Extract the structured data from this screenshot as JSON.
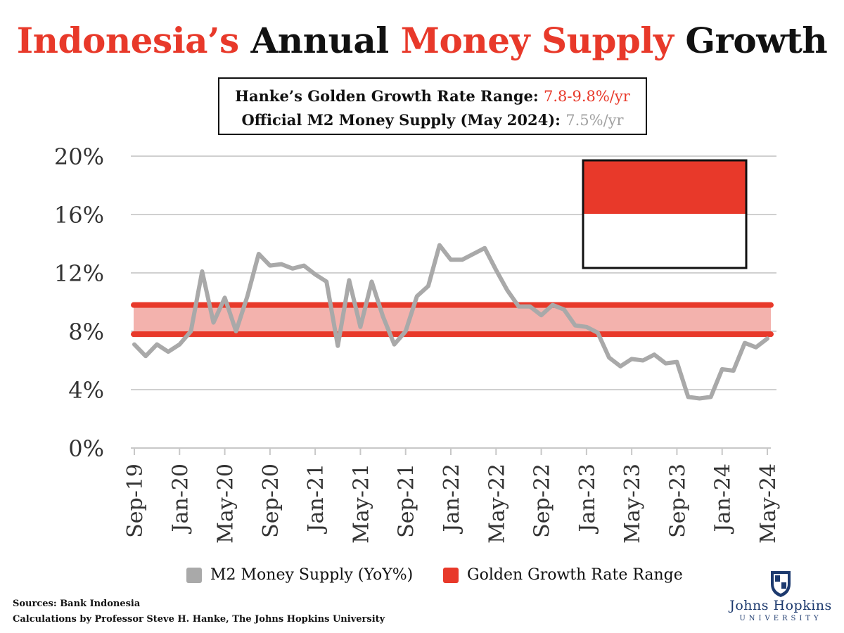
{
  "title": {
    "part1": "Indonesia’s",
    "part2": " Annual ",
    "part3": "Money Supply",
    "part4": " Growth"
  },
  "info": {
    "line1_label": "Hanke’s Golden Growth Rate Range: ",
    "line1_value": "7.8-9.8%/yr",
    "line2_label": "Official M2 Money Supply (May 2024): ",
    "line2_value": "7.5%/yr"
  },
  "legend": {
    "m2_label": "M2 Money Supply (YoY%)",
    "golden_label": "Golden Growth Rate Range"
  },
  "sources": {
    "line1": "Sources: Bank Indonesia",
    "line2": "Calculations by Professor Steve H. Hanke, The Johns Hopkins University"
  },
  "logo": {
    "name": "Johns Hopkins",
    "sub": "UNIVERSITY"
  },
  "colors": {
    "accent_red": "#e8392a",
    "series_gray": "#a9a9a9",
    "band_fill": "#f3b2ad",
    "grid": "#d0d0d0",
    "flag_red": "#e8392a",
    "flag_white": "#ffffff"
  },
  "chart_data": {
    "type": "line",
    "title": "Indonesia’s Annual Money Supply Growth",
    "ylim": [
      0,
      20
    ],
    "yticks": [
      "0%",
      "4%",
      "8%",
      "12%",
      "16%",
      "20%"
    ],
    "ytick_values": [
      0,
      4,
      8,
      12,
      16,
      20
    ],
    "x_tick_labels": [
      "Sep-19",
      "Jan-20",
      "May-20",
      "Sep-20",
      "Jan-21",
      "May-21",
      "Sep-21",
      "Jan-22",
      "May-22",
      "Sep-22",
      "Jan-23",
      "May-23",
      "Sep-23",
      "Jan-24",
      "May-24"
    ],
    "grid": true,
    "legend_position": "bottom",
    "golden_range": {
      "name": "Golden Growth Rate Range",
      "low": 7.8,
      "high": 9.8
    },
    "series": [
      {
        "name": "M2 Money Supply (YoY%)",
        "x": [
          "Sep-19",
          "Oct-19",
          "Nov-19",
          "Dec-19",
          "Jan-20",
          "Feb-20",
          "Mar-20",
          "Apr-20",
          "May-20",
          "Jun-20",
          "Jul-20",
          "Aug-20",
          "Sep-20",
          "Oct-20",
          "Nov-20",
          "Dec-20",
          "Jan-21",
          "Feb-21",
          "Mar-21",
          "Apr-21",
          "May-21",
          "Jun-21",
          "Jul-21",
          "Aug-21",
          "Sep-21",
          "Oct-21",
          "Nov-21",
          "Dec-21",
          "Jan-22",
          "Feb-22",
          "Mar-22",
          "Apr-22",
          "May-22",
          "Jun-22",
          "Jul-22",
          "Aug-22",
          "Sep-22",
          "Oct-22",
          "Nov-22",
          "Dec-22",
          "Jan-23",
          "Feb-23",
          "Mar-23",
          "Apr-23",
          "May-23",
          "Jun-23",
          "Jul-23",
          "Aug-23",
          "Sep-23",
          "Oct-23",
          "Nov-23",
          "Dec-23",
          "Jan-24",
          "Feb-24",
          "Mar-24",
          "Apr-24",
          "May-24"
        ],
        "values": [
          7.1,
          6.3,
          7.1,
          6.6,
          7.1,
          8.0,
          12.1,
          8.6,
          10.3,
          8.0,
          10.4,
          13.3,
          12.5,
          12.6,
          12.3,
          12.5,
          11.9,
          11.4,
          7.0,
          11.5,
          8.3,
          11.4,
          9.0,
          7.1,
          8.0,
          10.4,
          11.1,
          13.9,
          12.9,
          12.9,
          13.3,
          13.7,
          12.2,
          10.8,
          9.7,
          9.7,
          9.1,
          9.8,
          9.5,
          8.4,
          8.3,
          7.9,
          6.2,
          5.6,
          6.1,
          6.0,
          6.4,
          5.8,
          5.9,
          3.5,
          3.4,
          3.5,
          5.4,
          5.3,
          7.2,
          6.9,
          7.5
        ]
      }
    ]
  }
}
